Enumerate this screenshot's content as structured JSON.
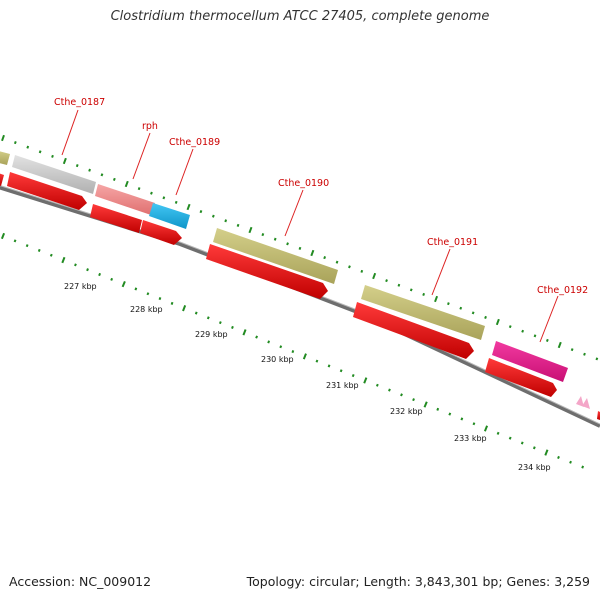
{
  "title": "Clostridium thermocellum ATCC 27405, complete genome",
  "accession": "Accession: NC_009012",
  "summary": "Topology: circular; Length: 3,843,301 bp; Genes: 3,259",
  "colors": {
    "cds": "#ee0000",
    "olive": "#bdb76b",
    "grey": "#c8c8c8",
    "salmon": "#f08080",
    "cyan": "#1ab2e6",
    "magenta": "#e6198c",
    "pink": "#f4a6c8",
    "green_tick": "#228b22",
    "label": "#cc0000"
  },
  "genes": [
    {
      "name": "Cthe_0187"
    },
    {
      "name": "rph"
    },
    {
      "name": "Cthe_0189"
    },
    {
      "name": "Cthe_0190"
    },
    {
      "name": "Cthe_0191"
    },
    {
      "name": "Cthe_0192"
    }
  ],
  "kbp_ticks": [
    "227 kbp",
    "228 kbp",
    "229 kbp",
    "230 kbp",
    "231 kbp",
    "232 kbp",
    "233 kbp",
    "234 kbp"
  ]
}
